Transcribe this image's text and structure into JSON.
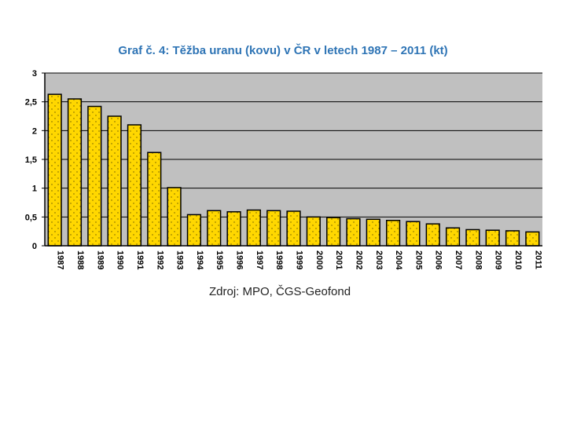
{
  "chart_data": {
    "type": "bar",
    "title": "Graf č. 4: Těžba uranu (kovu) v ČR v letech 1987 – 2011 (kt)",
    "source": "Zdroj: MPO, ČGS-Geofond",
    "categories": [
      "1987",
      "1988",
      "1989",
      "1990",
      "1991",
      "1992",
      "1993",
      "1994",
      "1995",
      "1996",
      "1997",
      "1998",
      "1999",
      "2000",
      "2001",
      "2002",
      "2003",
      "2004",
      "2005",
      "2006",
      "2007",
      "2008",
      "2009",
      "2010",
      "2011"
    ],
    "values": [
      2.63,
      2.55,
      2.42,
      2.25,
      2.1,
      1.62,
      1.01,
      0.54,
      0.61,
      0.59,
      0.62,
      0.61,
      0.6,
      0.5,
      0.49,
      0.47,
      0.46,
      0.44,
      0.42,
      0.38,
      0.31,
      0.28,
      0.27,
      0.26,
      0.24
    ],
    "ylim": [
      0,
      3
    ],
    "yticks": [
      "0",
      "0,5",
      "1",
      "1,5",
      "2",
      "2,5",
      "3"
    ],
    "grid": true,
    "colors": {
      "bar_fill": "#ffd700",
      "bar_stroke": "#000000",
      "plot_background": "#c0c0c0",
      "title": "#2e74b5"
    }
  }
}
